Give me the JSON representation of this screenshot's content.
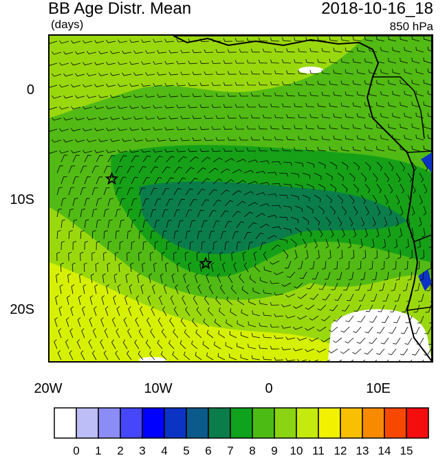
{
  "header": {
    "title": "BB Age Distr. Mean",
    "units": "(days)",
    "datetime": "2018-10-16_18",
    "level": "850 hPa"
  },
  "map": {
    "lat_labels": [
      "0",
      "10S",
      "20S"
    ],
    "lon_labels": [
      "20W",
      "10W",
      "0",
      "10E"
    ],
    "markers": [
      {
        "name": "star-marker",
        "lon": -14.3,
        "lat": -8.2
      },
      {
        "name": "star-marker",
        "lon": -5.7,
        "lat": -16.0
      }
    ],
    "fields": "wind barbs over shaded biomass-burning aerosol age"
  },
  "colorbar": {
    "labels": [
      "0",
      "1",
      "2",
      "3",
      "4",
      "5",
      "6",
      "7",
      "8",
      "9",
      "10",
      "11",
      "12",
      "13",
      "14",
      "15"
    ],
    "colors": [
      "#ffffff",
      "#bdbdf7",
      "#8c8cf7",
      "#4646fb",
      "#0000ff",
      "#0b34c4",
      "#0b5a8c",
      "#0b7d4b",
      "#0fa21c",
      "#4cbc15",
      "#8ad413",
      "#c4ea0e",
      "#f2f200",
      "#f8c000",
      "#f88a00",
      "#f84800",
      "#f40d0d"
    ]
  },
  "colors": {
    "ocean_yellow": "#d6f000",
    "light_green": "#9ad80e",
    "mid_green": "#52ba14",
    "green": "#16a018",
    "dark_green": "#0b7d4b",
    "blue_land": "#0b34c4"
  }
}
